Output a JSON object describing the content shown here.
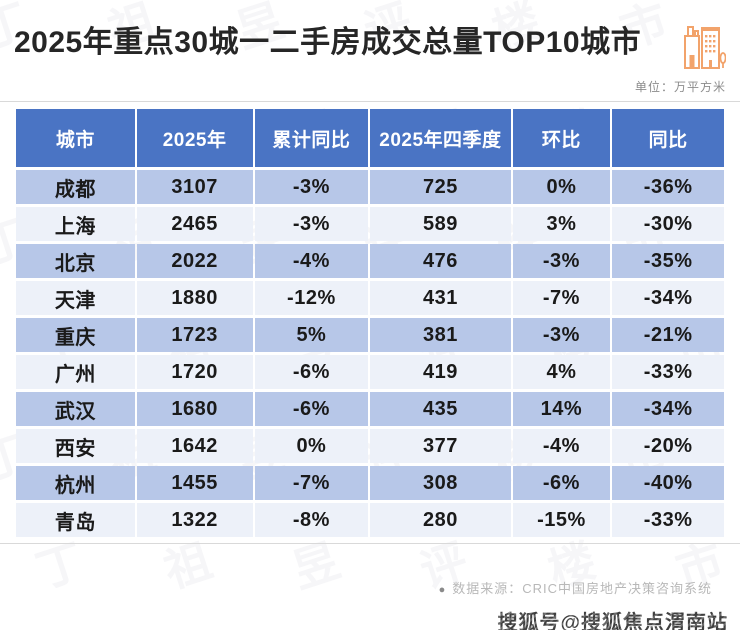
{
  "page": {
    "title": "2025年重点30城一二手房成交总量TOP10城市",
    "unit_label": "单位：万平方米"
  },
  "table": {
    "columns": [
      "城市",
      "2025年",
      "累计同比",
      "2025年四季度",
      "环比",
      "同比"
    ],
    "rows": [
      {
        "city": "成都",
        "total_2025": "3107",
        "cum_yoy": "-3%",
        "q4_2025": "725",
        "mom": "0%",
        "yoy": "-36%",
        "highlight": true
      },
      {
        "city": "上海",
        "total_2025": "2465",
        "cum_yoy": "-3%",
        "q4_2025": "589",
        "mom": "3%",
        "yoy": "-30%",
        "highlight": true
      },
      {
        "city": "北京",
        "total_2025": "2022",
        "cum_yoy": "-4%",
        "q4_2025": "476",
        "mom": "-3%",
        "yoy": "-35%",
        "highlight": true
      },
      {
        "city": "天津",
        "total_2025": "1880",
        "cum_yoy": "-12%",
        "q4_2025": "431",
        "mom": "-7%",
        "yoy": "-34%",
        "highlight": false
      },
      {
        "city": "重庆",
        "total_2025": "1723",
        "cum_yoy": "5%",
        "q4_2025": "381",
        "mom": "-3%",
        "yoy": "-21%",
        "highlight": false
      },
      {
        "city": "广州",
        "total_2025": "1720",
        "cum_yoy": "-6%",
        "q4_2025": "419",
        "mom": "4%",
        "yoy": "-33%",
        "highlight": false
      },
      {
        "city": "武汉",
        "total_2025": "1680",
        "cum_yoy": "-6%",
        "q4_2025": "435",
        "mom": "14%",
        "yoy": "-34%",
        "highlight": false
      },
      {
        "city": "西安",
        "total_2025": "1642",
        "cum_yoy": "0%",
        "q4_2025": "377",
        "mom": "-4%",
        "yoy": "-20%",
        "highlight": false
      },
      {
        "city": "杭州",
        "total_2025": "1455",
        "cum_yoy": "-7%",
        "q4_2025": "308",
        "mom": "-6%",
        "yoy": "-40%",
        "highlight": false
      },
      {
        "city": "青岛",
        "total_2025": "1322",
        "cum_yoy": "-8%",
        "q4_2025": "280",
        "mom": "-15%",
        "yoy": "-33%",
        "highlight": false
      }
    ]
  },
  "footer": {
    "source_bullet": "●",
    "source": "数据来源：CRIC中国房地产决策咨询系统",
    "publisher_stamp": "搜狐号@搜狐焦点渭南站"
  },
  "watermark_text": "丁祖昱评楼市",
  "colors": {
    "header_bg": "#4a74c4",
    "row_alt_bg": "#b7c7e8",
    "row_bg": "#edf1f9",
    "highlight_red": "#fe0000",
    "accent_orange": "#f2a36b",
    "title_text": "#262626",
    "source_text": "#b8b8b8"
  },
  "chart_data": {
    "type": "table",
    "title": "2025年重点30城一二手房成交总量TOP10城市",
    "unit": "万平方米",
    "columns": [
      "城市",
      "2025年",
      "累计同比",
      "2025年四季度",
      "环比",
      "同比"
    ],
    "rows": [
      [
        "成都",
        3107,
        "-3%",
        725,
        "0%",
        "-36%"
      ],
      [
        "上海",
        2465,
        "-3%",
        589,
        "3%",
        "-30%"
      ],
      [
        "北京",
        2022,
        "-4%",
        476,
        "-3%",
        "-35%"
      ],
      [
        "天津",
        1880,
        "-12%",
        431,
        "-7%",
        "-34%"
      ],
      [
        "重庆",
        1723,
        "5%",
        381,
        "-3%",
        "-21%"
      ],
      [
        "广州",
        1720,
        "-6%",
        419,
        "4%",
        "-33%"
      ],
      [
        "武汉",
        1680,
        "-6%",
        435,
        "14%",
        "-34%"
      ],
      [
        "西安",
        1642,
        "0%",
        377,
        "-4%",
        "-20%"
      ],
      [
        "杭州",
        1455,
        "-7%",
        308,
        "-6%",
        "-40%"
      ],
      [
        "青岛",
        1322,
        "-8%",
        280,
        "-15%",
        "-33%"
      ]
    ],
    "source": "CRIC中国房地产决策咨询系统",
    "highlighted_red_values": [
      3107,
      2465,
      2022
    ]
  }
}
